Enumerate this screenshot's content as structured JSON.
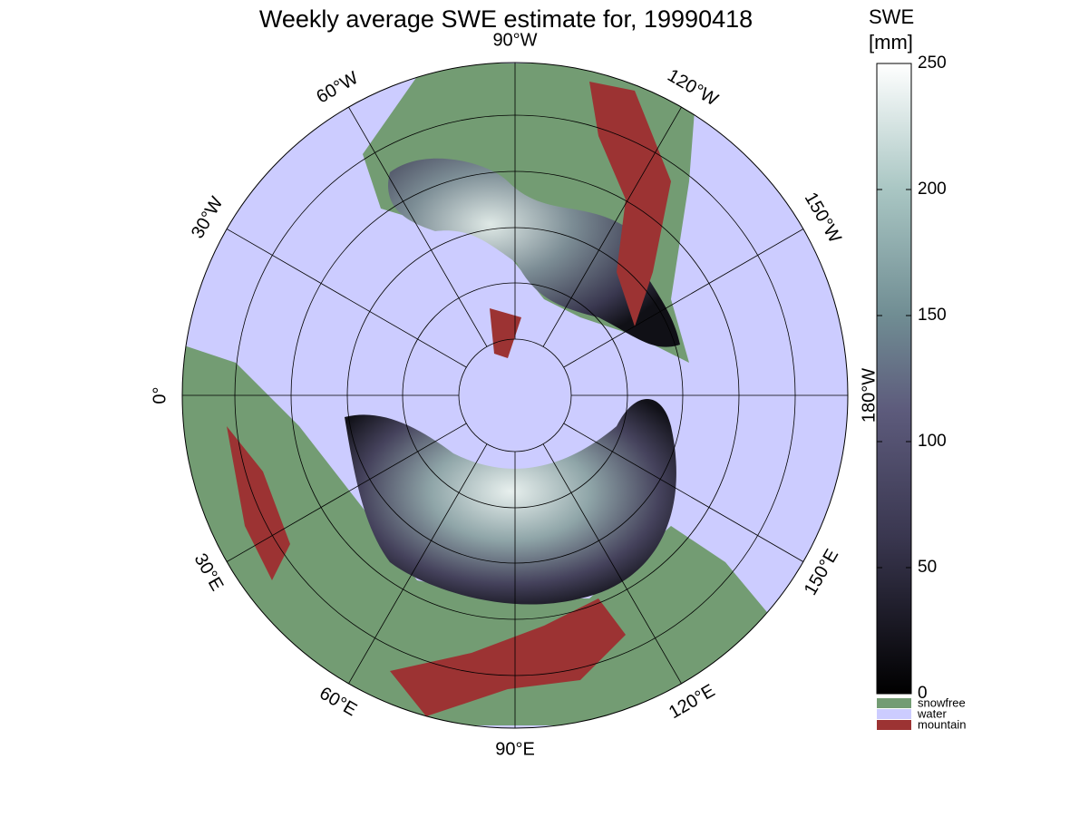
{
  "map": {
    "title": "Weekly average SWE estimate for, 19990418",
    "longitude_labels": [
      "0°",
      "30°E",
      "60°E",
      "90°E",
      "120°E",
      "150°E",
      "180°W",
      "150°W",
      "120°W",
      "90°W",
      "60°W",
      "30°W"
    ],
    "colorbar": {
      "label_lines": [
        "SWE",
        "[mm]"
      ],
      "clim": [
        0,
        250
      ],
      "ticks": [
        0,
        50,
        100,
        150,
        200,
        250
      ]
    },
    "legend": [
      {
        "name": "snowfree",
        "color": "#739c73"
      },
      {
        "name": "water",
        "color": "#ccccff"
      },
      {
        "name": "mountain",
        "color": "#9c3333"
      }
    ]
  }
}
